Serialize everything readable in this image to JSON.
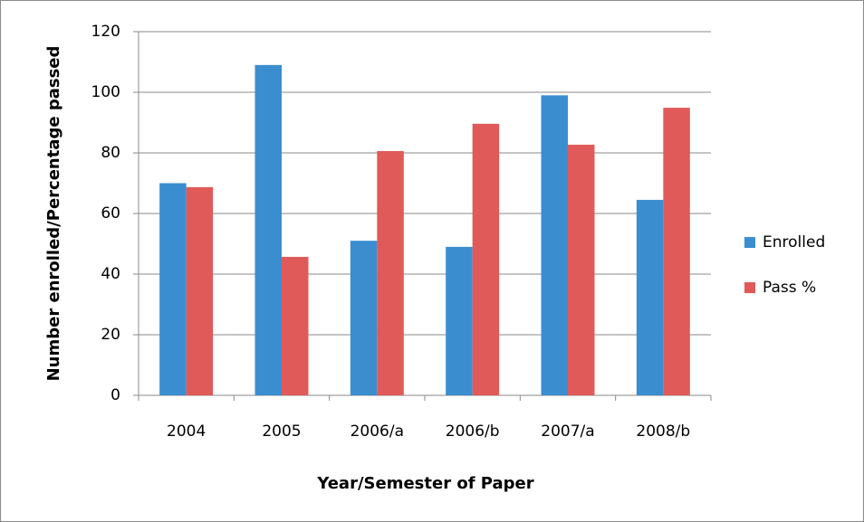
{
  "chart_data": {
    "type": "bar",
    "categories": [
      "2004",
      "2005",
      "2006/a",
      "2006/b",
      "2007/a",
      "2008/b"
    ],
    "series": [
      {
        "name": "Enrolled",
        "color": "#3a8ecf",
        "values": [
          70,
          109,
          51,
          49,
          99,
          64.5
        ]
      },
      {
        "name": "Pass %",
        "color": "#e05a59",
        "values": [
          68.7,
          45.7,
          80.6,
          89.6,
          82.7,
          94.9
        ]
      }
    ],
    "xlabel": "Year/Semester of Paper",
    "ylabel": "Number enrolled/Percentage passed",
    "ylim": [
      0,
      120
    ],
    "yticks": [
      0,
      20,
      40,
      60,
      80,
      100,
      120
    ],
    "grid": true,
    "legend": "right"
  }
}
